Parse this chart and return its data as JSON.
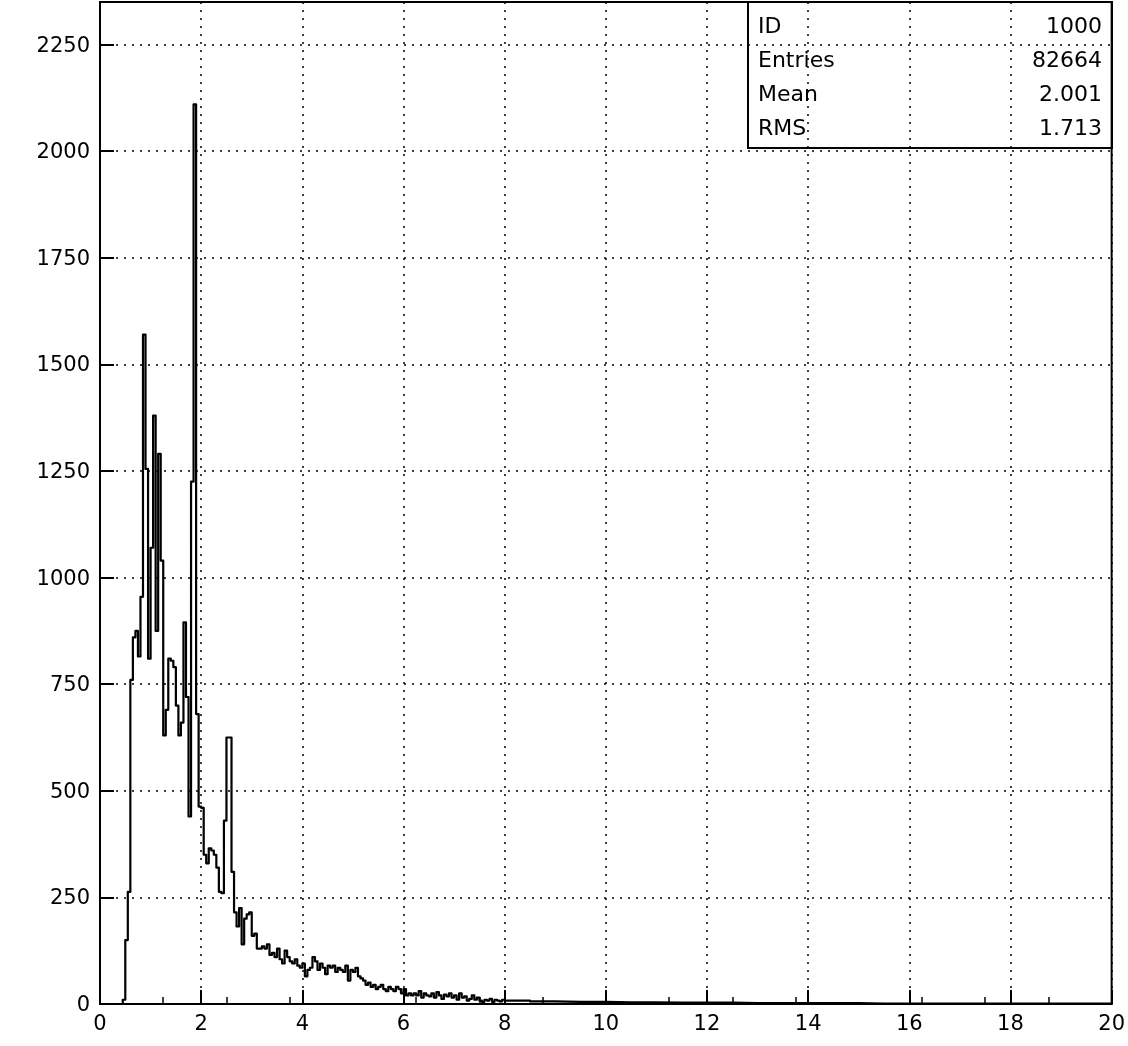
{
  "chart_data": {
    "type": "histogram",
    "bins": [
      0,
      0.45,
      0.5,
      0.55,
      0.6,
      0.65,
      0.7,
      0.75,
      0.8,
      0.85,
      0.9,
      0.95,
      1,
      1.05,
      1.1,
      1.15,
      1.2,
      1.25,
      1.3,
      1.35,
      1.4,
      1.45,
      1.5,
      1.55,
      1.6,
      1.65,
      1.7,
      1.75,
      1.8,
      1.85,
      1.9,
      1.95,
      2,
      2.05,
      2.1,
      2.15,
      2.2,
      2.25,
      2.3,
      2.35,
      2.4,
      2.45,
      2.5,
      2.55,
      2.6,
      2.65,
      2.7,
      2.75,
      2.8,
      2.85,
      2.9,
      2.95,
      3,
      3.05,
      3.1,
      3.15,
      3.2,
      3.25,
      3.3,
      3.35,
      3.4,
      3.45,
      3.5,
      3.55,
      3.6,
      3.65,
      3.7,
      3.75,
      3.8,
      3.85,
      3.9,
      3.95,
      4,
      4.05,
      4.1,
      4.15,
      4.2,
      4.25,
      4.3,
      4.35,
      4.4,
      4.45,
      4.5,
      4.55,
      4.6,
      4.65,
      4.7,
      4.75,
      4.8,
      4.85,
      4.9,
      4.95,
      5,
      5.05,
      5.1,
      5.15,
      5.2,
      5.25,
      5.3,
      5.35,
      5.4,
      5.45,
      5.5,
      5.55,
      5.6,
      5.65,
      5.7,
      5.75,
      5.8,
      5.85,
      5.9,
      5.95,
      6,
      6.05,
      6.1,
      6.15,
      6.2,
      6.25,
      6.3,
      6.35,
      6.4,
      6.45,
      6.5,
      6.55,
      6.6,
      6.65,
      6.7,
      6.75,
      6.8,
      6.85,
      6.9,
      6.95,
      7,
      7.05,
      7.1,
      7.15,
      7.2,
      7.25,
      7.3,
      7.35,
      7.4,
      7.45,
      7.5,
      7.55,
      7.6,
      7.65,
      7.7,
      7.75,
      7.8,
      7.85,
      7.9,
      7.95,
      8,
      8.5,
      9,
      9.5,
      10,
      10.5,
      11,
      11.5,
      12,
      12.5,
      13,
      13.5,
      14,
      14.5,
      15,
      15.5,
      16,
      16.5,
      17,
      17.5,
      18,
      18.5,
      19,
      19.5,
      20
    ],
    "values": [
      0,
      10,
      150,
      263,
      760,
      860,
      875,
      815,
      955,
      1570,
      1255,
      810,
      1070,
      1380,
      875,
      1290,
      1040,
      630,
      690,
      810,
      805,
      790,
      700,
      630,
      660,
      895,
      720,
      440,
      1225,
      2110,
      680,
      463,
      460,
      350,
      330,
      365,
      360,
      350,
      320,
      263,
      260,
      430,
      625,
      625,
      310,
      215,
      182,
      225,
      140,
      200,
      210,
      215,
      160,
      165,
      130,
      130,
      135,
      130,
      140,
      115,
      120,
      110,
      130,
      105,
      95,
      125,
      110,
      100,
      95,
      105,
      90,
      85,
      95,
      65,
      80,
      85,
      110,
      100,
      80,
      95,
      85,
      70,
      90,
      85,
      90,
      75,
      85,
      80,
      75,
      90,
      55,
      80,
      75,
      85,
      65,
      60,
      55,
      45,
      50,
      40,
      45,
      35,
      40,
      45,
      35,
      30,
      40,
      35,
      30,
      40,
      35,
      25,
      35,
      20,
      25,
      20,
      25,
      20,
      30,
      15,
      25,
      20,
      18,
      25,
      15,
      28,
      20,
      12,
      22,
      18,
      25,
      15,
      20,
      10,
      25,
      15,
      18,
      8,
      12,
      20,
      10,
      15,
      8,
      5,
      10,
      8,
      12,
      5,
      10,
      8,
      6,
      10,
      8,
      6,
      5,
      5,
      4,
      4,
      3,
      3,
      3,
      2,
      2,
      2,
      2,
      2,
      1,
      1,
      1,
      1,
      1,
      1,
      1,
      1,
      1,
      1
    ],
    "color": "#000000",
    "xlim": [
      0,
      20
    ],
    "xticks": [
      0,
      2,
      4,
      6,
      8,
      10,
      12,
      14,
      16,
      18,
      20
    ],
    "ylim": [
      0,
      2350
    ],
    "yticks": [
      0,
      250,
      500,
      750,
      1000,
      1250,
      1500,
      1750,
      2000,
      2250
    ],
    "grid": true,
    "annotations": [
      "ID",
      "1000",
      "Entries",
      "82664",
      "Mean",
      "2.001",
      "RMS",
      "1.713"
    ]
  }
}
